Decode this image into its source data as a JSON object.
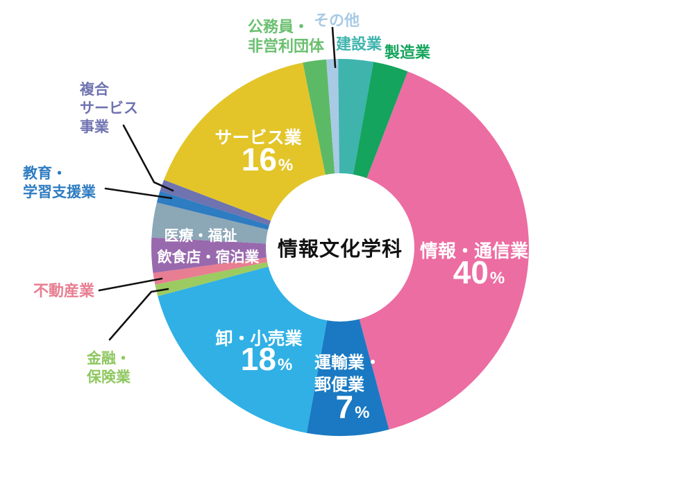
{
  "page": {
    "background": "#ffffff"
  },
  "chart_data": {
    "type": "pie",
    "variant": "donut",
    "title": "情報文化学科",
    "value_unit": "%",
    "start_angle_deg": 21,
    "direction": "clockwise",
    "legend_position": "callout-labels-around-chart",
    "grid": false,
    "segments": [
      {
        "label": "情報・通信業",
        "value": 40,
        "color": "#ec6da2",
        "value_shown": true
      },
      {
        "label": "運輸業・郵便業",
        "value": 7,
        "color": "#1a79c2",
        "value_shown": true
      },
      {
        "label": "卸・小売業",
        "value": 18,
        "color": "#30b0e5",
        "value_shown": true
      },
      {
        "label": "金融・保険業",
        "value": 1,
        "color": "#9ccb61",
        "value_shown": false
      },
      {
        "label": "不動産業",
        "value": 1,
        "color": "#e87e91",
        "value_shown": false
      },
      {
        "label": "飲食店・宿泊業",
        "value": 3,
        "color": "#9969ae",
        "value_shown": false
      },
      {
        "label": "医療・福祉",
        "value": 3,
        "color": "#8ca7b6",
        "value_shown": false
      },
      {
        "label": "教育・学習支援業",
        "value": 1,
        "color": "#2e7cc1",
        "value_shown": false
      },
      {
        "label": "複合サービス事業",
        "value": 1,
        "color": "#6f73b0",
        "value_shown": false
      },
      {
        "label": "サービス業",
        "value": 16,
        "color": "#e3c529",
        "value_shown": true
      },
      {
        "label": "公務員・非営利団体",
        "value": 2,
        "color": "#5cba66",
        "value_shown": false
      },
      {
        "label": "その他",
        "value": 1,
        "color": "#a9cae4",
        "value_shown": false
      },
      {
        "label": "建設業",
        "value": 3,
        "color": "#3eb4ad",
        "value_shown": false
      },
      {
        "label": "製造業",
        "value": 3,
        "color": "#14a45e",
        "value_shown": false
      }
    ]
  },
  "center_label": {
    "text": "情報文化学科",
    "color": "#111111"
  },
  "labels": {
    "service_name": "サービス業",
    "service_value": "16",
    "service_unit": "%",
    "jouhou_name": "情報・通信業",
    "jouhou_value": "40",
    "jouhou_unit": "%",
    "oroshi_name": "卸・小売業",
    "oroshi_value": "18",
    "oroshi_unit": "%",
    "unyu_line1": "運輸業・",
    "unyu_line2": "郵便業",
    "unyu_value": "7",
    "unyu_unit": "%",
    "iryou_name": "医療・福祉",
    "inshoku_name": "飲食店・宿泊業"
  },
  "callouts": {
    "koumuin_line1": "公務員・",
    "koumuin_line2": "非営利団体",
    "koumuin_color": "#6abf6f",
    "sonota_text": "その他",
    "sonota_color": "#a9cae4",
    "kensetsu_text": "建設業",
    "kensetsu_color": "#3eb4ad",
    "seizou_text": "製造業",
    "seizou_color": "#14a45c",
    "fukugou_line1": "複合",
    "fukugou_line2": "サービス",
    "fukugou_line3": "事業",
    "fukugou_color": "#6f73b0",
    "kyouiku_line1": "教育・",
    "kyouiku_line2": "学習支援業",
    "kyouiku_color": "#2e7cc1",
    "fudousan_text": "不動産業",
    "fudousan_color": "#e87e91",
    "kinyuu_line1": "金融・",
    "kinyuu_line2": "保険業",
    "kinyuu_color": "#8ec75f",
    "leader_line_color": "#111111"
  }
}
